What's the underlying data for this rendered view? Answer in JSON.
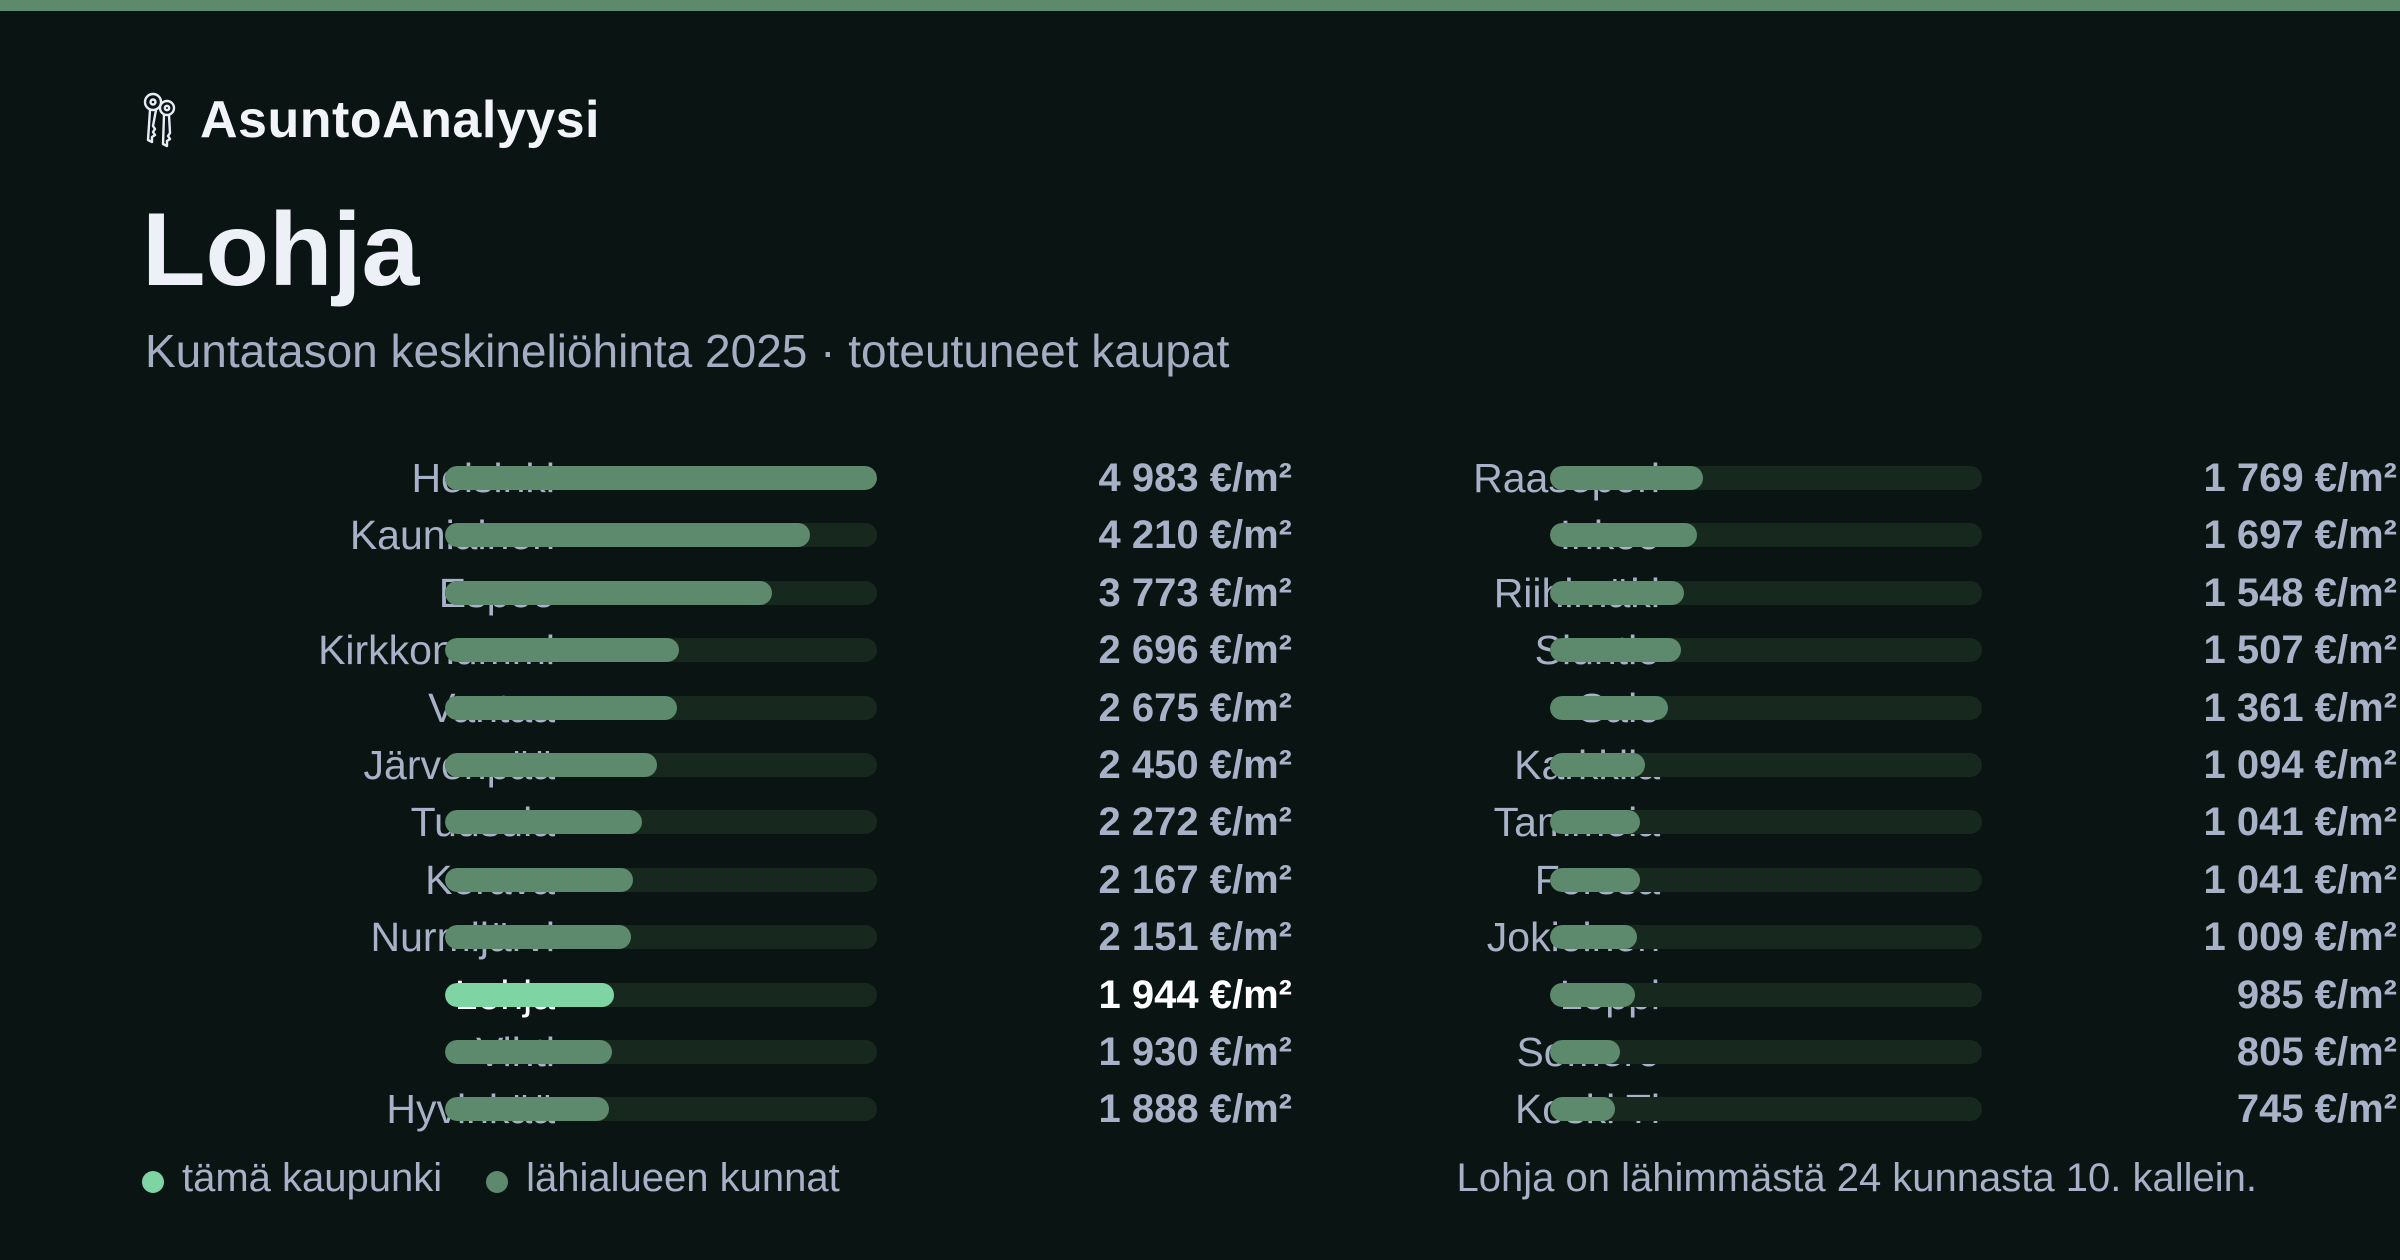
{
  "colors": {
    "background": "#0a1513",
    "accent_stripe": "#5d8a6c",
    "bar_default": "#5d8a6c",
    "bar_highlight": "#7fd4a3",
    "track": "#17281f",
    "text_muted": "#a7b1c7",
    "text_highlight": "#ffffff"
  },
  "brand": {
    "name": "AsuntoAnalyysi",
    "icon": "keys-icon"
  },
  "header": {
    "title": "Lohja",
    "subtitle": "Kuntatason keskineliöhinta 2025 · toteutuneet kaupat"
  },
  "legend": {
    "this_city": "tämä kaupunki",
    "nearby": "lähialueen kunnat"
  },
  "footnote": "Lohja on lähimmästä 24 kunnasta 10. kallein.",
  "chart_data": {
    "type": "bar",
    "orientation": "horizontal",
    "unit": "€/m²",
    "xlim": [
      0,
      4983
    ],
    "highlight": "Lohja",
    "grid": false,
    "legend_position": "bottom-left",
    "categories": [
      "Helsinki",
      "Kauniainen",
      "Espoo",
      "Kirkkonummi",
      "Vantaa",
      "Järvenpää",
      "Tuusula",
      "Kerava",
      "Nurmijärvi",
      "Lohja",
      "Vihti",
      "Hyvinkää",
      "Raasepori",
      "Inkoo",
      "Riihimäki",
      "Siuntio",
      "Salo",
      "Karkkila",
      "Tammela",
      "Forssa",
      "Jokioinen",
      "Loppi",
      "Somero",
      "Koski Tl"
    ],
    "values": [
      4983,
      4210,
      3773,
      2696,
      2675,
      2450,
      2272,
      2167,
      2151,
      1944,
      1930,
      1888,
      1769,
      1697,
      1548,
      1507,
      1361,
      1094,
      1041,
      1041,
      1009,
      985,
      805,
      745
    ],
    "labels": [
      "4 983 €/m²",
      "4 210 €/m²",
      "3 773 €/m²",
      "2 696 €/m²",
      "2 675 €/m²",
      "2 450 €/m²",
      "2 272 €/m²",
      "2 167 €/m²",
      "2 151 €/m²",
      "1 944 €/m²",
      "1 930 €/m²",
      "1 888 €/m²",
      "1 769 €/m²",
      "1 697 €/m²",
      "1 548 €/m²",
      "1 507 €/m²",
      "1 361 €/m²",
      "1 094 €/m²",
      "1 041 €/m²",
      "1 041 €/m²",
      "1 009 €/m²",
      "985 €/m²",
      "805 €/m²",
      "745 €/m²"
    ]
  }
}
